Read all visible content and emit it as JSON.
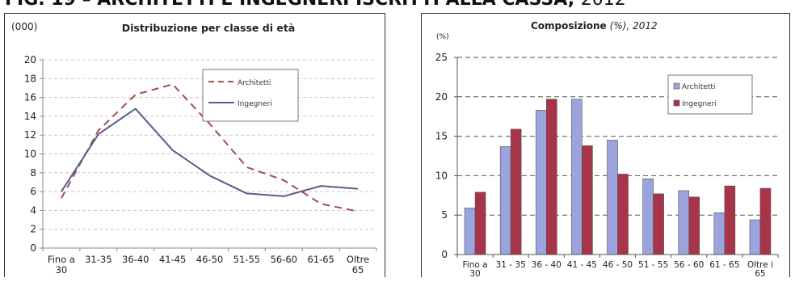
{
  "page_title": {
    "prefix": "FIG. 19 – ARCHITETTI E INGEGNERI ISCRITTI ALLA CASSA,",
    "year": "2012"
  },
  "colors": {
    "architetti_line": "#a0504e",
    "ingegneri_line": "#5a5c8e",
    "architetti_bar": "#9ba4dc",
    "ingegneri_bar": "#a8344a"
  },
  "chart_data": [
    {
      "type": "line",
      "title": "Distribuzione per classe di età",
      "unit": "(000)",
      "categories": [
        "Fino a 30",
        "31-35",
        "36-40",
        "41-45",
        "46-50",
        "51-55",
        "56-60",
        "61-65",
        "Oltre 65"
      ],
      "category_lines": [
        [
          "Fino a",
          "30"
        ],
        [
          "31-35"
        ],
        [
          "36-40"
        ],
        [
          "41-45"
        ],
        [
          "46-50"
        ],
        [
          "51-55"
        ],
        [
          "56-60"
        ],
        [
          "61-65"
        ],
        [
          "Oltre",
          "65"
        ]
      ],
      "ylim": [
        0,
        20
      ],
      "yticks": [
        "0",
        "2",
        "4",
        "6",
        "8",
        "10",
        "12",
        "14",
        "16",
        "18",
        "20"
      ],
      "grid": true,
      "legend_position": "top-right",
      "series": [
        {
          "name": "Architetti",
          "style": "dashed",
          "values": [
            5.3,
            12.5,
            16.3,
            17.4,
            13.2,
            8.6,
            7.2,
            4.7,
            3.9
          ]
        },
        {
          "name": "Ingegneri",
          "style": "solid",
          "values": [
            6.0,
            12.1,
            14.8,
            10.4,
            7.7,
            5.8,
            5.5,
            6.6,
            6.3
          ]
        }
      ]
    },
    {
      "type": "bar",
      "title": "Composizione",
      "title_unit": "(%)",
      "title_year": ", 2012",
      "unit": "(%)",
      "categories": [
        "Fino a 30",
        "31 - 35",
        "36 - 40",
        "41 - 45",
        "46 - 50",
        "51 - 55",
        "56 - 60",
        "61 - 65",
        "Oltre i 65"
      ],
      "category_lines": [
        [
          "Fino a",
          "30"
        ],
        [
          "31 - 35"
        ],
        [
          "36 - 40"
        ],
        [
          "41 - 45"
        ],
        [
          "46 - 50"
        ],
        [
          "51 - 55"
        ],
        [
          "56 - 60"
        ],
        [
          "61 - 65"
        ],
        [
          "Oltre i",
          "65"
        ]
      ],
      "ylim": [
        0,
        25
      ],
      "yticks": [
        "0",
        "5",
        "10",
        "15",
        "20",
        "25"
      ],
      "grid": true,
      "legend_position": "top-right",
      "series": [
        {
          "name": "Architetti",
          "values": [
            5.9,
            13.7,
            18.3,
            19.7,
            14.5,
            9.6,
            8.1,
            5.3,
            4.4
          ]
        },
        {
          "name": "Ingegneri",
          "values": [
            7.9,
            15.9,
            19.7,
            13.8,
            10.2,
            7.7,
            7.3,
            8.7,
            8.4
          ]
        }
      ]
    }
  ]
}
